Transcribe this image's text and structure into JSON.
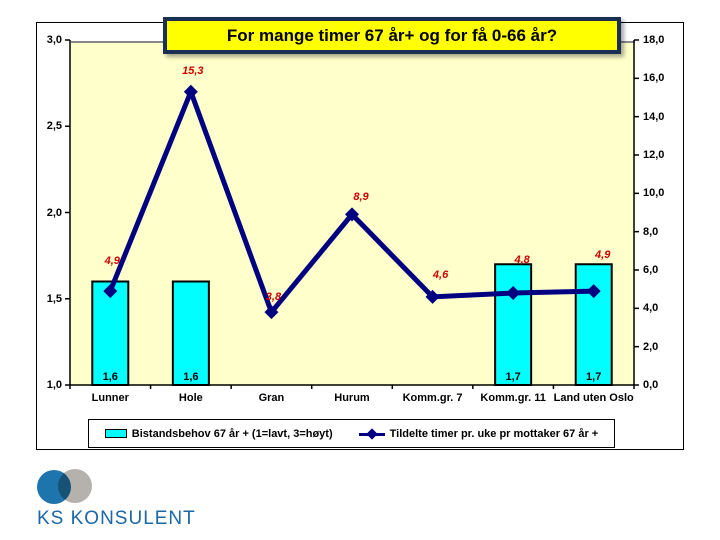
{
  "slide": {
    "background": "#FFFFFF"
  },
  "colors": {
    "plot_bg": "#FFFFCC",
    "bar_fill": "#00FFFF",
    "bar_border": "#000000",
    "line": "#000080",
    "point_label": "#CC0000",
    "title_bg": "#FFFF00",
    "title_border": "#1B2F52",
    "axis": "#000000",
    "plot_top_border": "#888888"
  },
  "chart_data": {
    "type": "bar+line combo",
    "title": "For mange timer 67 år+ og for få 0-66 år?",
    "grid": false,
    "legend_position": "bottom",
    "categories": [
      "Lunner",
      "Hole",
      "Gran",
      "Hurum",
      "Komm.gr. 7",
      "Komm.gr. 11",
      "Land uten Oslo"
    ],
    "left_axis": {
      "min": 1.0,
      "max": 3.0,
      "tick_labels": [
        "3,0",
        "2,5",
        "2,0",
        "1,5",
        "1,0"
      ],
      "tick_values": [
        3.0,
        2.5,
        2.0,
        1.5,
        1.0
      ]
    },
    "right_axis": {
      "min": 0.0,
      "max": 18.0,
      "tick_labels": [
        "18,0",
        "16,0",
        "14,0",
        "12,0",
        "10,0",
        "8,0",
        "6,0",
        "4,0",
        "2,0",
        "0,0"
      ],
      "tick_values": [
        18,
        16,
        14,
        12,
        10,
        8,
        6,
        4,
        2,
        0
      ]
    },
    "series": [
      {
        "name": "Bistandsbehov 67 år + (1=lavt, 3=høyt)",
        "type": "bar",
        "axis": "left",
        "values": [
          1.6,
          1.6,
          null,
          null,
          null,
          1.7,
          1.7
        ],
        "labels": [
          "1,6",
          "1,6",
          null,
          null,
          null,
          "1,7",
          "1,7"
        ]
      },
      {
        "name": "Tildelte timer pr. uke pr mottaker 67 år +",
        "type": "line",
        "axis": "right",
        "values": [
          4.9,
          15.3,
          3.8,
          8.9,
          4.6,
          4.8,
          4.9
        ],
        "labels": [
          "4,9",
          "15,3",
          "3,8",
          "8,9",
          "4,6",
          "4,8",
          "4,9"
        ],
        "label_offsets": [
          [
            2,
            -30
          ],
          [
            2,
            -21
          ],
          [
            2,
            -15
          ],
          [
            9,
            -17
          ],
          [
            8,
            -22
          ],
          [
            9,
            -33
          ],
          [
            9,
            -36
          ]
        ]
      }
    ]
  },
  "logo": {
    "text": "KS KONSULENT",
    "circle_blue": "#1E74AD",
    "circle_gray": "#B5B2AE",
    "text_color": "#1C67A5"
  }
}
